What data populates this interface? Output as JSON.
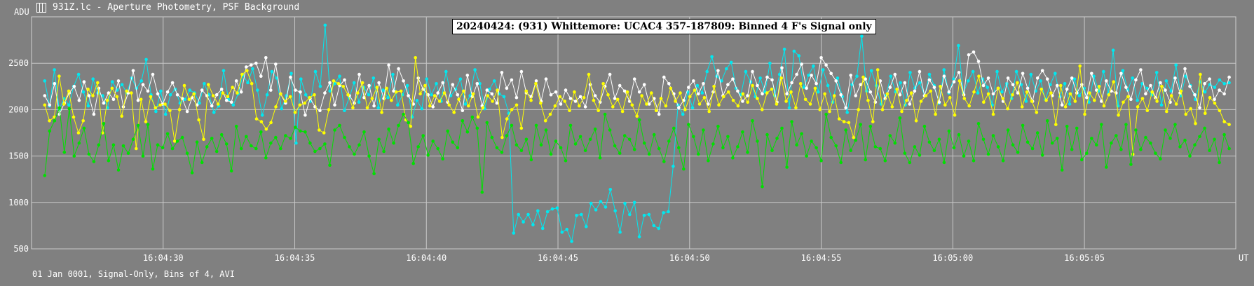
{
  "window": {
    "title": "931Z.lc - Aperture Photometry, PSF Background",
    "icon": "light-curve-icon"
  },
  "footer": {
    "text": "01 Jan 0001, Signal-Only, Bins of 4, AVI"
  },
  "chart_data": {
    "type": "line",
    "title": "20240424: (931) Whittemore: UCAC4 357-187809: Binned 4 F's Signal only",
    "ylabel": "ADU",
    "xlabel": "UT",
    "ylim": [
      500,
      3000
    ],
    "yticks": [
      500,
      1000,
      1500,
      2000,
      2500
    ],
    "xlim": [
      0,
      9.15
    ],
    "xticks": [
      {
        "t": 1.0,
        "label": "16:04:30"
      },
      {
        "t": 2.0,
        "label": "16:04:35"
      },
      {
        "t": 3.0,
        "label": "16:04:40"
      },
      {
        "t": 4.0,
        "label": "16:04:45"
      },
      {
        "t": 5.0,
        "label": "16:04:50"
      },
      {
        "t": 6.0,
        "label": "16:04:55"
      },
      {
        "t": 7.0,
        "label": "16:05:00"
      },
      {
        "t": 8.0,
        "label": "16:05:05"
      }
    ],
    "grid": true,
    "legend": "none",
    "series": [
      {
        "color": "#00e8f0",
        "values": [
          2310,
          2040,
          2430,
          2000,
          2120,
          2050,
          2250,
          2380,
          2190,
          2040,
          2330,
          2180,
          2150,
          2020,
          2300,
          2210,
          2270,
          2180,
          2340,
          2230,
          2310,
          2540,
          2160,
          1980,
          2200,
          1950,
          2160,
          2220,
          2070,
          2110,
          2210,
          2180,
          2070,
          2280,
          2160,
          1970,
          2040,
          2420,
          2110,
          2050,
          2170,
          2370,
          2290,
          2440,
          2210,
          1940,
          2160,
          2410,
          2340,
          2010,
          2150,
          2390,
          1640,
          2330,
          2160,
          2090,
          2410,
          2250,
          2910,
          2200,
          2280,
          2360,
          1990,
          2130,
          2290,
          2080,
          2240,
          2160,
          2340,
          2020,
          2210,
          2130,
          2380,
          2050,
          2160,
          2260,
          1920,
          2100,
          2010,
          2330,
          2160,
          2280,
          2090,
          2410,
          2150,
          2220,
          2330,
          2060,
          2150,
          2430,
          2280,
          2010,
          2220,
          2310,
          2170,
          2140,
          1960,
          670,
          870,
          790,
          870,
          760,
          910,
          720,
          900,
          930,
          940,
          680,
          710,
          580,
          860,
          870,
          740,
          990,
          920,
          1010,
          950,
          1140,
          910,
          680,
          990,
          870,
          1000,
          630,
          860,
          870,
          750,
          720,
          890,
          900,
          1390,
          2050,
          1950,
          2190,
          2020,
          2260,
          2180,
          2410,
          2570,
          2360,
          2310,
          2440,
          2510,
          2230,
          2160,
          2410,
          2300,
          2140,
          2340,
          2190,
          2500,
          2150,
          2380,
          2650,
          2020,
          2630,
          2580,
          2240,
          2370,
          2470,
          2190,
          2430,
          2260,
          2080,
          2340,
          2140,
          1970,
          2270,
          2360,
          2790,
          2200,
          2420,
          2260,
          2060,
          2150,
          2360,
          2190,
          2290,
          2050,
          2400,
          2230,
          2290,
          2150,
          2380,
          2260,
          2070,
          2430,
          2180,
          2330,
          2690,
          2180,
          2310,
          2410,
          2180,
          2330,
          2240,
          2050,
          2410,
          2190,
          2280,
          2120,
          2410,
          2270,
          2090,
          2380,
          2200,
          2310,
          2110,
          2270,
          2390,
          2140,
          2280,
          2060,
          2330,
          2150,
          2230,
          2080,
          2360,
          2200,
          2410,
          2170,
          2640,
          2040,
          2420,
          2210,
          2340,
          2100,
          2280,
          2230,
          2160,
          2400,
          2050,
          2310,
          2200,
          2480,
          2150,
          2360,
          2260,
          2110,
          2300,
          2190,
          2270,
          2240,
          2320,
          2280,
          2290
        ]
      },
      {
        "color": "#ffffff",
        "values": [
          2150,
          2050,
          2280,
          1950,
          2070,
          2180,
          2250,
          2100,
          2300,
          2150,
          1950,
          2230,
          2070,
          2180,
          2110,
          2310,
          2030,
          2180,
          2420,
          2100,
          2270,
          2200,
          2380,
          2170,
          2060,
          2190,
          2290,
          2160,
          2120,
          1980,
          2130,
          2050,
          2210,
          2150,
          2040,
          2160,
          2220,
          2100,
          2080,
          2310,
          2190,
          2460,
          2480,
          2500,
          2360,
          2560,
          2210,
          2490,
          2170,
          2070,
          2350,
          2210,
          2190,
          1940,
          2120,
          2030,
          1990,
          2180,
          2290,
          2050,
          2260,
          2320,
          2150,
          2070,
          2380,
          2130,
          2260,
          2040,
          2290,
          2120,
          2480,
          2200,
          2440,
          2310,
          2150,
          2060,
          2340,
          2220,
          2160,
          2030,
          2180,
          2290,
          2080,
          2270,
          2160,
          1990,
          2370,
          2140,
          2280,
          2040,
          2210,
          2170,
          2070,
          2400,
          2230,
          2320,
          2130,
          2410,
          2180,
          2140,
          2310,
          2090,
          2330,
          2160,
          2190,
          2060,
          2210,
          2120,
          2090,
          2140,
          2030,
          2270,
          2150,
          2080,
          2250,
          2380,
          2120,
          2260,
          2200,
          2090,
          2330,
          2190,
          2270,
          2060,
          2120,
          1950,
          2350,
          2280,
          2170,
          2020,
          2100,
          2240,
          2310,
          2170,
          2280,
          2060,
          2190,
          2420,
          2150,
          2270,
          2330,
          2200,
          2090,
          2150,
          2410,
          2260,
          2170,
          2350,
          2320,
          2080,
          2450,
          2170,
          2290,
          2380,
          2490,
          2230,
          2370,
          2280,
          2560,
          2480,
          2390,
          2310,
          2160,
          2020,
          2370,
          2150,
          2270,
          2330,
          2190,
          2080,
          2310,
          2120,
          2240,
          2380,
          2160,
          2290,
          2060,
          2200,
          2410,
          2150,
          2320,
          2240,
          2080,
          2360,
          2190,
          2300,
          2400,
          2160,
          2590,
          2620,
          2520,
          2260,
          2340,
          2170,
          2230,
          2090,
          2340,
          2270,
          2180,
          2390,
          2230,
          2090,
          2340,
          2420,
          2330,
          2150,
          2260,
          2050,
          2220,
          2340,
          2180,
          2270,
          2130,
          2390,
          2210,
          2090,
          2310,
          2200,
          2180,
          2390,
          2240,
          2110,
          2320,
          2430,
          2170,
          2260,
          2130,
          2290,
          2210,
          2080,
          2340,
          2180,
          2440,
          2250,
          2160,
          2020,
          2280,
          2330,
          2110,
          2210,
          2170,
          2350
        ]
      },
      {
        "color": "#ffff00",
        "values": [
          2050,
          1880,
          1920,
          2360,
          2060,
          2200,
          1920,
          1750,
          1880,
          2220,
          2150,
          2290,
          1750,
          2100,
          2230,
          2140,
          1930,
          2200,
          2180,
          1580,
          2110,
          1870,
          2140,
          2020,
          2050,
          2060,
          1990,
          1660,
          2000,
          2260,
          2110,
          2170,
          1890,
          1680,
          2270,
          2150,
          2060,
          2180,
          2140,
          2240,
          2180,
          2380,
          2420,
          2280,
          1900,
          1870,
          1790,
          1860,
          2030,
          2170,
          2090,
          2140,
          1970,
          2050,
          2070,
          2130,
          2160,
          1780,
          1750,
          2000,
          2310,
          2280,
          2250,
          2160,
          2020,
          2180,
          2290,
          2020,
          2120,
          2240,
          1970,
          2230,
          2100,
          2190,
          2200,
          1890,
          1820,
          2560,
          2170,
          2260,
          2040,
          2150,
          2090,
          2180,
          2050,
          1970,
          2110,
          2200,
          2040,
          2170,
          1920,
          2020,
          2150,
          2090,
          2210,
          1700,
          1900,
          2000,
          2050,
          1800,
          2200,
          2100,
          2280,
          2070,
          1880,
          1950,
          2040,
          2140,
          2090,
          1990,
          2190,
          2040,
          2130,
          2380,
          2100,
          1990,
          2280,
          2160,
          2030,
          2110,
          1980,
          2190,
          2050,
          1930,
          2150,
          2060,
          2180,
          1990,
          2120,
          2040,
          2230,
          2090,
          2180,
          2000,
          2140,
          2210,
          2060,
          2130,
          1980,
          2250,
          2050,
          2140,
          2190,
          2100,
          2040,
          2170,
          2080,
          2260,
          2120,
          2000,
          2180,
          2220,
          2060,
          2340,
          2090,
          2190,
          2020,
          2280,
          2110,
          2060,
          2230,
          2000,
          2170,
          1980,
          2150,
          1900,
          1870,
          1860,
          1700,
          2000,
          2350,
          2100,
          1870,
          2430,
          2000,
          2170,
          2030,
          2220,
          1980,
          2100,
          2180,
          1880,
          2090,
          2150,
          2200,
          1950,
          2250,
          2050,
          2130,
          1940,
          2310,
          2120,
          2040,
          2190,
          2360,
          2080,
          2170,
          1950,
          2230,
          2120,
          2010,
          2160,
          2290,
          2030,
          2190,
          2090,
          1970,
          2220,
          2100,
          2180,
          1840,
          2260,
          2030,
          2170,
          2090,
          2470,
          1950,
          2180,
          2100,
          2250,
          2040,
          2160,
          2300,
          1940,
          2080,
          2140,
          1520,
          2030,
          2120,
          1990,
          2190,
          2090,
          2250,
          1980,
          2150,
          2060,
          2200,
          1950,
          2010,
          1850,
          2380,
          1960,
          2130,
          2070,
          1990,
          1870,
          1840
        ]
      },
      {
        "color": "#00e000",
        "values": [
          1290,
          1770,
          1880,
          2020,
          1540,
          2010,
          1500,
          1640,
          1800,
          1520,
          1440,
          1620,
          1850,
          1450,
          1620,
          1350,
          1610,
          1530,
          1680,
          1830,
          1500,
          1840,
          1360,
          1620,
          1590,
          1740,
          1580,
          1660,
          1700,
          1530,
          1320,
          1650,
          1430,
          1600,
          1690,
          1550,
          1730,
          1630,
          1340,
          1820,
          1580,
          1710,
          1610,
          1580,
          1760,
          1480,
          1640,
          1700,
          1580,
          1720,
          1690,
          1810,
          1770,
          1760,
          1640,
          1550,
          1580,
          1630,
          1400,
          1780,
          1830,
          1700,
          1600,
          1520,
          1620,
          1760,
          1500,
          1310,
          1680,
          1550,
          1790,
          1640,
          1830,
          1950,
          1860,
          1420,
          1600,
          1720,
          1510,
          1660,
          1580,
          1470,
          1770,
          1650,
          1590,
          1880,
          1760,
          1920,
          1800,
          1110,
          1860,
          1700,
          1590,
          1540,
          1720,
          1830,
          1620,
          1560,
          1680,
          1460,
          1830,
          1620,
          1780,
          1520,
          1660,
          1590,
          1450,
          1830,
          1630,
          1710,
          1560,
          1680,
          1790,
          1480,
          1950,
          1780,
          1610,
          1530,
          1720,
          1680,
          1570,
          1890,
          1640,
          1520,
          1730,
          1580,
          1440,
          1660,
          1800,
          1590,
          1360,
          1840,
          1710,
          1520,
          1780,
          1450,
          1630,
          1820,
          1590,
          1710,
          1480,
          1600,
          1760,
          1540,
          1880,
          1660,
          1170,
          1730,
          1560,
          1690,
          1800,
          1380,
          1870,
          1620,
          1740,
          1500,
          1660,
          1590,
          1450,
          1950,
          1700,
          1610,
          1430,
          1780,
          1560,
          1670,
          1840,
          1460,
          1820,
          1600,
          1580,
          1450,
          1720,
          1640,
          1910,
          1530,
          1430,
          1600,
          1510,
          1820,
          1650,
          1560,
          1680,
          1430,
          1770,
          1590,
          1730,
          1500,
          1660,
          1450,
          1850,
          1680,
          1520,
          1720,
          1600,
          1450,
          1780,
          1620,
          1540,
          1830,
          1650,
          1580,
          1750,
          1510,
          1880,
          1640,
          1690,
          1350,
          1820,
          1570,
          1800,
          1460,
          1530,
          1690,
          1620,
          1840,
          1380,
          1640,
          1720,
          1570,
          1840,
          1410,
          1780,
          1570,
          1700,
          1640,
          1530,
          1470,
          1780,
          1690,
          1840,
          1600,
          1670,
          1500,
          1620,
          1710,
          1800,
          1560,
          1680,
          1430,
          1730,
          1580
        ]
      }
    ]
  }
}
